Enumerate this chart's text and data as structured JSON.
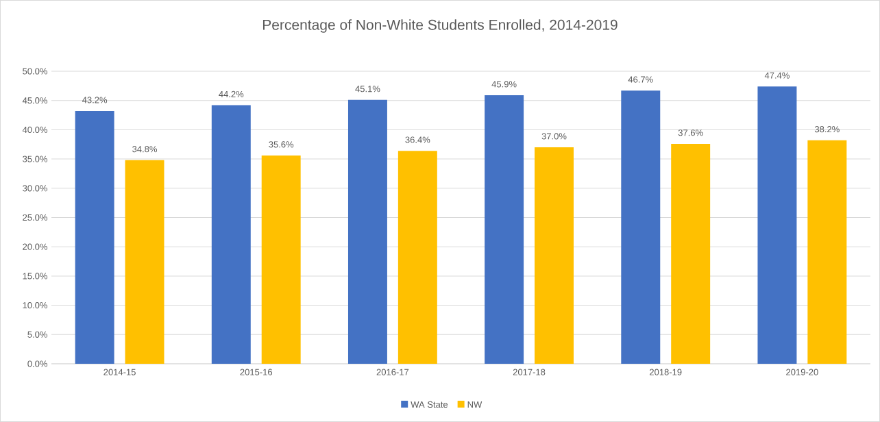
{
  "chart_data": {
    "type": "bar",
    "title": "Percentage of Non-White Students Enrolled, 2014-2019",
    "categories": [
      "2014-15",
      "2015-16",
      "2016-17",
      "2017-18",
      "2018-19",
      "2019-20"
    ],
    "series": [
      {
        "name": "WA State",
        "color": "#4472c4",
        "values": [
          43.2,
          44.2,
          45.1,
          45.9,
          46.7,
          47.4
        ],
        "value_labels": [
          "43.2%",
          "44.2%",
          "45.1%",
          "45.9%",
          "46.7%",
          "47.4%"
        ]
      },
      {
        "name": "NW",
        "color": "#ffc000",
        "values": [
          34.8,
          35.6,
          36.4,
          37.0,
          37.6,
          38.2
        ],
        "value_labels": [
          "34.8%",
          "35.6%",
          "36.4%",
          "37.0%",
          "37.6%",
          "38.2%"
        ]
      }
    ],
    "ylim": [
      0,
      50
    ],
    "yticks": [
      {
        "value": 0,
        "label": "0.0%"
      },
      {
        "value": 5,
        "label": "5.0%"
      },
      {
        "value": 10,
        "label": "10.0%"
      },
      {
        "value": 15,
        "label": "15.0%"
      },
      {
        "value": 20,
        "label": "20.0%"
      },
      {
        "value": 25,
        "label": "25.0%"
      },
      {
        "value": 30,
        "label": "30.0%"
      },
      {
        "value": 35,
        "label": "35.0%"
      },
      {
        "value": 40,
        "label": "40.0%"
      },
      {
        "value": 45,
        "label": "45.0%"
      },
      {
        "value": 50,
        "label": "50.0%"
      }
    ],
    "grid": "y",
    "legend": "bottom"
  }
}
